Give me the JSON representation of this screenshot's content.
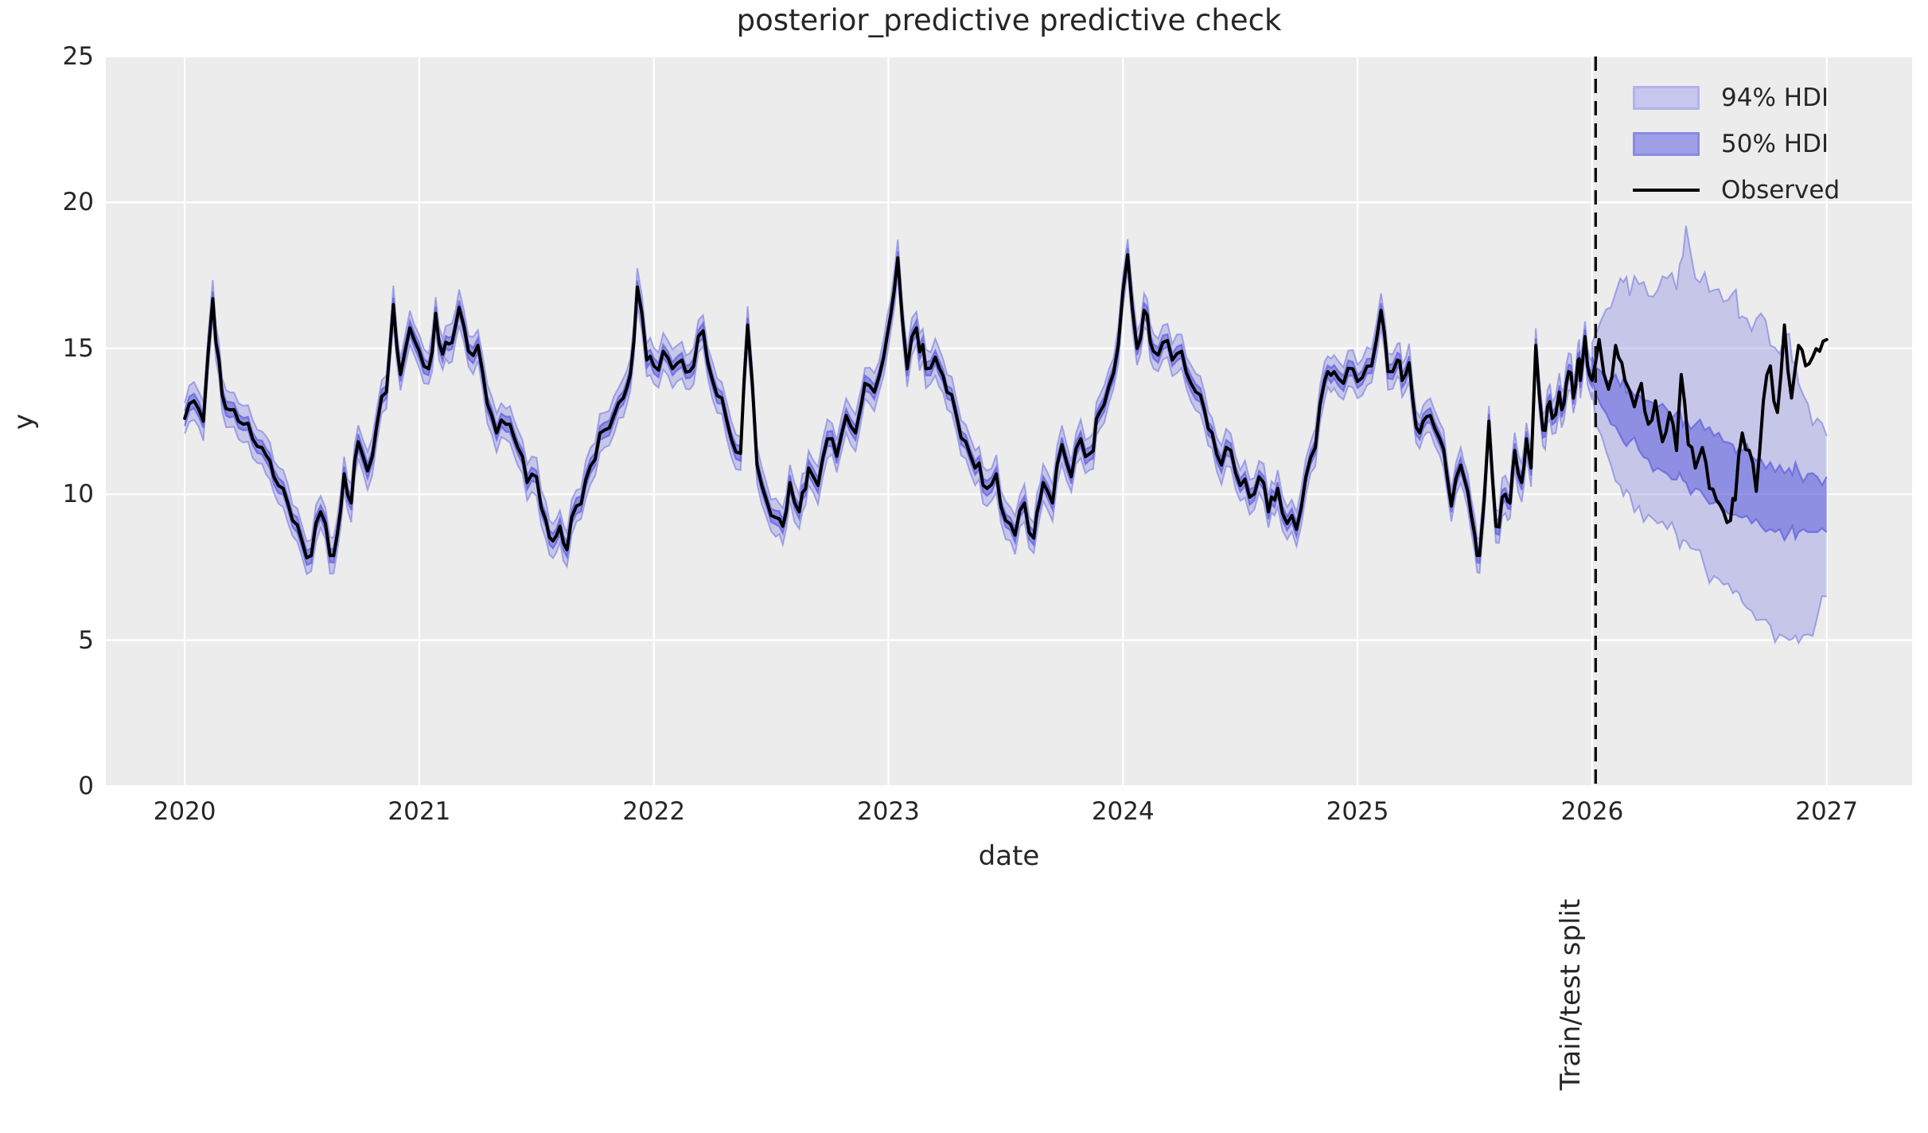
{
  "title": "posterior_predictive predictive check",
  "axes": {
    "xlabel": "date",
    "ylabel": "y",
    "bg": "#ececec",
    "grid_color": "#ffffff",
    "tick_color": "#262626",
    "xlim": [
      2019.664,
      2027.364
    ],
    "ylim": [
      0,
      25
    ],
    "xticks": [
      2020,
      2021,
      2022,
      2023,
      2024,
      2025,
      2026,
      2027
    ],
    "yticks": [
      0,
      5,
      10,
      15,
      20,
      25
    ]
  },
  "legend": {
    "items": [
      {
        "label": "94% HDI",
        "type": "patch",
        "fill": "#c6c6ef",
        "edge": "#b2b2ec"
      },
      {
        "label": "50% HDI",
        "type": "patch",
        "fill": "#9f9fe8",
        "edge": "#8a8ae1"
      },
      {
        "label": "Observed",
        "type": "line",
        "color": "#000000"
      }
    ]
  },
  "split": {
    "x": 2026,
    "label": "Train/test split",
    "line_color": "#111111",
    "line_style": "dashed"
  },
  "colors": {
    "hdi94_fill": "rgba(108,108,224,0.30)",
    "hdi94_edge": "rgba(110,110,225,0.55)",
    "hdi50_fill": "rgba(96,96,220,0.55)",
    "hdi50_edge": "rgba(88,88,218,0.65)",
    "observed": "#000000"
  },
  "chart_data": {
    "type": "line",
    "title": "posterior_predictive predictive check",
    "xlabel": "date",
    "ylabel": "y",
    "xlim": [
      2019.664,
      2027.364
    ],
    "ylim": [
      0,
      25
    ],
    "grid": true,
    "legend_position": "upper right",
    "train_test_split_x": 2026,
    "series": [
      {
        "name": "Observed",
        "points": [
          [
            2020.0,
            12.6
          ],
          [
            2020.04,
            13.2
          ],
          [
            2020.08,
            12.5
          ],
          [
            2020.12,
            16.7
          ],
          [
            2020.16,
            13.4
          ],
          [
            2020.21,
            12.9
          ],
          [
            2020.25,
            12.4
          ],
          [
            2020.29,
            11.9
          ],
          [
            2020.33,
            11.6
          ],
          [
            2020.38,
            10.6
          ],
          [
            2020.42,
            10.2
          ],
          [
            2020.46,
            9.1
          ],
          [
            2020.5,
            8.4
          ],
          [
            2020.54,
            7.9
          ],
          [
            2020.58,
            9.4
          ],
          [
            2020.62,
            7.9
          ],
          [
            2020.65,
            8.6
          ],
          [
            2020.68,
            10.7
          ],
          [
            2020.71,
            9.7
          ],
          [
            2020.74,
            11.8
          ],
          [
            2020.78,
            10.8
          ],
          [
            2020.82,
            12.4
          ],
          [
            2020.86,
            13.5
          ],
          [
            2020.89,
            16.5
          ],
          [
            2020.92,
            14.1
          ],
          [
            2020.96,
            15.7
          ],
          [
            2021.0,
            14.9
          ],
          [
            2021.04,
            14.3
          ],
          [
            2021.07,
            16.2
          ],
          [
            2021.1,
            14.8
          ],
          [
            2021.14,
            15.2
          ],
          [
            2021.17,
            16.4
          ],
          [
            2021.21,
            14.9
          ],
          [
            2021.25,
            15.1
          ],
          [
            2021.29,
            13.1
          ],
          [
            2021.33,
            12.1
          ],
          [
            2021.37,
            12.4
          ],
          [
            2021.42,
            11.6
          ],
          [
            2021.46,
            10.4
          ],
          [
            2021.5,
            10.6
          ],
          [
            2021.54,
            9.1
          ],
          [
            2021.57,
            8.4
          ],
          [
            2021.6,
            8.9
          ],
          [
            2021.63,
            8.1
          ],
          [
            2021.67,
            9.6
          ],
          [
            2021.71,
            10.5
          ],
          [
            2021.75,
            11.2
          ],
          [
            2021.79,
            12.2
          ],
          [
            2021.83,
            12.7
          ],
          [
            2021.87,
            13.3
          ],
          [
            2021.9,
            14.1
          ],
          [
            2021.93,
            17.1
          ],
          [
            2021.97,
            14.6
          ],
          [
            2022.0,
            14.4
          ],
          [
            2022.04,
            14.9
          ],
          [
            2022.08,
            14.3
          ],
          [
            2022.12,
            14.6
          ],
          [
            2022.17,
            14.4
          ],
          [
            2022.21,
            15.6
          ],
          [
            2022.25,
            13.9
          ],
          [
            2022.29,
            13.3
          ],
          [
            2022.33,
            11.9
          ],
          [
            2022.37,
            11.4
          ],
          [
            2022.4,
            15.8
          ],
          [
            2022.44,
            11.0
          ],
          [
            2022.48,
            9.8
          ],
          [
            2022.52,
            9.2
          ],
          [
            2022.55,
            8.9
          ],
          [
            2022.58,
            10.4
          ],
          [
            2022.62,
            9.4
          ],
          [
            2022.66,
            10.9
          ],
          [
            2022.7,
            10.3
          ],
          [
            2022.74,
            11.9
          ],
          [
            2022.78,
            11.3
          ],
          [
            2022.82,
            12.7
          ],
          [
            2022.86,
            12.1
          ],
          [
            2022.9,
            13.8
          ],
          [
            2022.94,
            13.5
          ],
          [
            2022.98,
            14.7
          ],
          [
            2023.04,
            18.1
          ],
          [
            2023.08,
            14.3
          ],
          [
            2023.12,
            15.7
          ],
          [
            2023.16,
            14.3
          ],
          [
            2023.2,
            14.7
          ],
          [
            2023.25,
            13.5
          ],
          [
            2023.29,
            12.7
          ],
          [
            2023.33,
            11.8
          ],
          [
            2023.37,
            10.9
          ],
          [
            2023.42,
            10.2
          ],
          [
            2023.46,
            10.7
          ],
          [
            2023.5,
            9.1
          ],
          [
            2023.54,
            8.6
          ],
          [
            2023.58,
            9.7
          ],
          [
            2023.62,
            8.5
          ],
          [
            2023.66,
            10.4
          ],
          [
            2023.7,
            9.7
          ],
          [
            2023.74,
            11.7
          ],
          [
            2023.78,
            10.6
          ],
          [
            2023.82,
            11.9
          ],
          [
            2023.86,
            11.4
          ],
          [
            2023.9,
            12.8
          ],
          [
            2023.94,
            13.7
          ],
          [
            2023.98,
            15.1
          ],
          [
            2024.02,
            18.2
          ],
          [
            2024.06,
            15.0
          ],
          [
            2024.09,
            16.3
          ],
          [
            2024.13,
            14.9
          ],
          [
            2024.17,
            15.2
          ],
          [
            2024.21,
            14.6
          ],
          [
            2024.25,
            14.9
          ],
          [
            2024.29,
            13.8
          ],
          [
            2024.33,
            13.4
          ],
          [
            2024.38,
            12.1
          ],
          [
            2024.42,
            11.0
          ],
          [
            2024.46,
            11.5
          ],
          [
            2024.5,
            10.3
          ],
          [
            2024.54,
            9.9
          ],
          [
            2024.58,
            10.6
          ],
          [
            2024.62,
            9.4
          ],
          [
            2024.66,
            10.2
          ],
          [
            2024.7,
            9.0
          ],
          [
            2024.74,
            8.8
          ],
          [
            2024.78,
            10.6
          ],
          [
            2024.82,
            11.6
          ],
          [
            2024.86,
            13.9
          ],
          [
            2024.9,
            14.2
          ],
          [
            2024.94,
            13.8
          ],
          [
            2024.98,
            14.3
          ],
          [
            2025.02,
            14.0
          ],
          [
            2025.06,
            14.4
          ],
          [
            2025.1,
            16.3
          ],
          [
            2025.13,
            14.2
          ],
          [
            2025.17,
            14.6
          ],
          [
            2025.19,
            13.9
          ],
          [
            2025.22,
            14.5
          ],
          [
            2025.25,
            12.3
          ],
          [
            2025.28,
            12.5
          ],
          [
            2025.31,
            12.7
          ],
          [
            2025.35,
            11.9
          ],
          [
            2025.4,
            9.6
          ],
          [
            2025.44,
            11.0
          ],
          [
            2025.47,
            10.1
          ],
          [
            2025.5,
            8.6
          ],
          [
            2025.52,
            7.9
          ],
          [
            2025.56,
            12.5
          ],
          [
            2025.59,
            8.9
          ],
          [
            2025.63,
            10.0
          ],
          [
            2025.65,
            9.7
          ],
          [
            2025.67,
            11.5
          ],
          [
            2025.7,
            10.4
          ],
          [
            2025.72,
            11.9
          ],
          [
            2025.74,
            10.9
          ],
          [
            2025.76,
            15.1
          ],
          [
            2025.79,
            12.2
          ],
          [
            2025.81,
            13.0
          ],
          [
            2025.83,
            12.6
          ],
          [
            2025.86,
            13.5
          ],
          [
            2025.88,
            13.1
          ],
          [
            2025.9,
            14.2
          ],
          [
            2025.92,
            13.3
          ],
          [
            2025.94,
            14.6
          ],
          [
            2025.95,
            13.9
          ],
          [
            2025.97,
            15.4
          ],
          [
            2025.98,
            14.4
          ],
          [
            2026.0,
            13.9
          ],
          [
            2026.03,
            15.3
          ],
          [
            2026.07,
            13.6
          ],
          [
            2026.1,
            15.1
          ],
          [
            2026.14,
            13.9
          ],
          [
            2026.18,
            13.0
          ],
          [
            2026.21,
            13.8
          ],
          [
            2026.24,
            12.4
          ],
          [
            2026.27,
            13.2
          ],
          [
            2026.3,
            11.8
          ],
          [
            2026.33,
            12.8
          ],
          [
            2026.36,
            11.5
          ],
          [
            2026.38,
            14.1
          ],
          [
            2026.41,
            11.7
          ],
          [
            2026.44,
            10.9
          ],
          [
            2026.47,
            11.6
          ],
          [
            2026.5,
            10.2
          ],
          [
            2026.53,
            9.8
          ],
          [
            2026.56,
            9.4
          ],
          [
            2026.59,
            9.1
          ],
          [
            2026.61,
            9.8
          ],
          [
            2026.64,
            12.1
          ],
          [
            2026.67,
            11.5
          ],
          [
            2026.7,
            10.1
          ],
          [
            2026.73,
            13.2
          ],
          [
            2026.76,
            14.4
          ],
          [
            2026.79,
            12.8
          ],
          [
            2026.82,
            15.8
          ],
          [
            2026.85,
            13.3
          ],
          [
            2026.88,
            15.1
          ],
          [
            2026.91,
            14.4
          ],
          [
            2026.94,
            14.7
          ],
          [
            2026.97,
            14.9
          ],
          [
            2027.0,
            15.3
          ]
        ]
      }
    ],
    "hdi_insample": {
      "hdi94_halfwidth": 0.55,
      "hdi50_halfwidth": 0.24
    },
    "hdi_forecast": {
      "columns": [
        "x",
        "hdi94_lower",
        "hdi50_lower",
        "hdi50_upper",
        "hdi94_upper"
      ],
      "rows": [
        [
          2026.0,
          13.5,
          13.9,
          14.7,
          15.2
        ],
        [
          2026.04,
          12.0,
          13.0,
          14.2,
          16.0
        ],
        [
          2026.08,
          11.0,
          12.4,
          13.9,
          16.4
        ],
        [
          2026.12,
          10.3,
          12.0,
          13.7,
          17.4
        ],
        [
          2026.16,
          10.0,
          11.8,
          13.6,
          16.8
        ],
        [
          2026.2,
          9.6,
          11.5,
          13.4,
          17.2
        ],
        [
          2026.24,
          9.3,
          11.2,
          13.2,
          16.8
        ],
        [
          2026.28,
          9.0,
          10.9,
          13.0,
          17.0
        ],
        [
          2026.32,
          8.8,
          10.7,
          12.9,
          17.4
        ],
        [
          2026.36,
          8.6,
          10.5,
          12.8,
          17.0
        ],
        [
          2026.4,
          8.4,
          10.4,
          12.6,
          19.2
        ],
        [
          2026.44,
          8.1,
          10.2,
          12.4,
          17.4
        ],
        [
          2026.48,
          7.5,
          9.9,
          12.2,
          17.6
        ],
        [
          2026.52,
          7.2,
          9.7,
          12.0,
          17.0
        ],
        [
          2026.56,
          6.9,
          9.5,
          11.8,
          16.6
        ],
        [
          2026.6,
          6.6,
          9.3,
          11.7,
          16.9
        ],
        [
          2026.64,
          6.3,
          9.2,
          11.5,
          16.1
        ],
        [
          2026.68,
          6.0,
          9.0,
          11.3,
          15.6
        ],
        [
          2026.72,
          5.7,
          8.9,
          11.2,
          16.2
        ],
        [
          2026.76,
          5.5,
          8.8,
          11.1,
          15.1
        ],
        [
          2026.8,
          5.2,
          8.8,
          11.0,
          14.8
        ],
        [
          2026.84,
          5.0,
          8.7,
          10.9,
          15.5
        ],
        [
          2026.88,
          4.9,
          8.7,
          10.8,
          13.8
        ],
        [
          2026.92,
          5.2,
          8.7,
          10.7,
          13.1
        ],
        [
          2026.96,
          5.8,
          8.7,
          10.6,
          12.6
        ],
        [
          2027.0,
          6.5,
          8.7,
          10.6,
          12.0
        ]
      ]
    }
  }
}
